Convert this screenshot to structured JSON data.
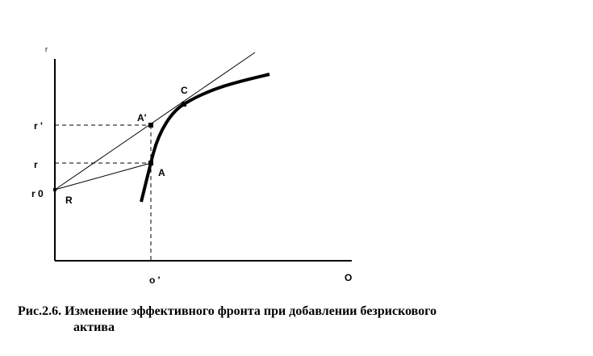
{
  "figure": {
    "y_axis_label": "r",
    "x_axis_label": "O",
    "ticks": {
      "r_prime": "r '",
      "r": "r",
      "r0": "r 0",
      "o_prime": "o '"
    },
    "points": {
      "A_prime": "A'",
      "A": "A",
      "C": "C",
      "R": "R"
    },
    "caption_line1": "Рис.2.6. Изменение эффективного фронта при добавлении безрискового",
    "caption_line2": "актива"
  }
}
